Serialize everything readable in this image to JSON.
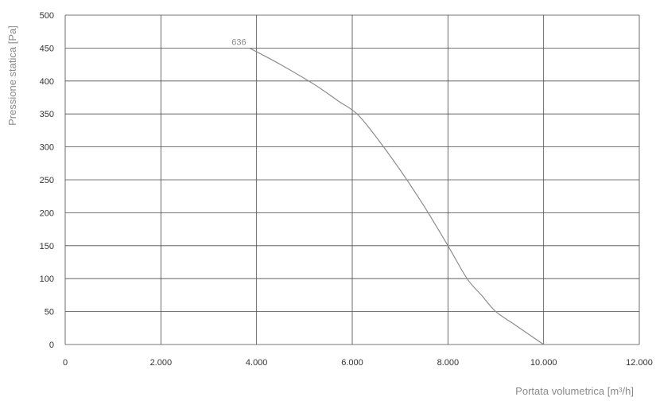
{
  "chart_data": {
    "type": "line",
    "title": "",
    "xlabel": "Portata volumetrica [m³/h]",
    "ylabel": "Pressione statica [Pa]",
    "xlim": [
      0,
      12000
    ],
    "ylim": [
      0,
      500
    ],
    "x_ticks": [
      0,
      2000,
      4000,
      6000,
      8000,
      10000,
      12000
    ],
    "x_tick_labels": [
      "0",
      "2.000",
      "4.000",
      "6.000",
      "8.000",
      "10.000",
      "12.000"
    ],
    "y_ticks": [
      0,
      50,
      100,
      150,
      200,
      250,
      300,
      350,
      400,
      450,
      500
    ],
    "y_tick_labels": [
      "0",
      "50",
      "100",
      "150",
      "200",
      "250",
      "300",
      "350",
      "400",
      "450",
      "500"
    ],
    "grid": true,
    "series": [
      {
        "name": "636",
        "color": "#8c8c8c",
        "x": [
          3850,
          4500,
          5200,
          5700,
          6100,
          6500,
          7000,
          7500,
          8000,
          8400,
          8700,
          9000,
          9400,
          10000
        ],
        "y": [
          450,
          425,
          395,
          370,
          350,
          315,
          265,
          210,
          150,
          100,
          75,
          50,
          30,
          0
        ]
      }
    ]
  }
}
